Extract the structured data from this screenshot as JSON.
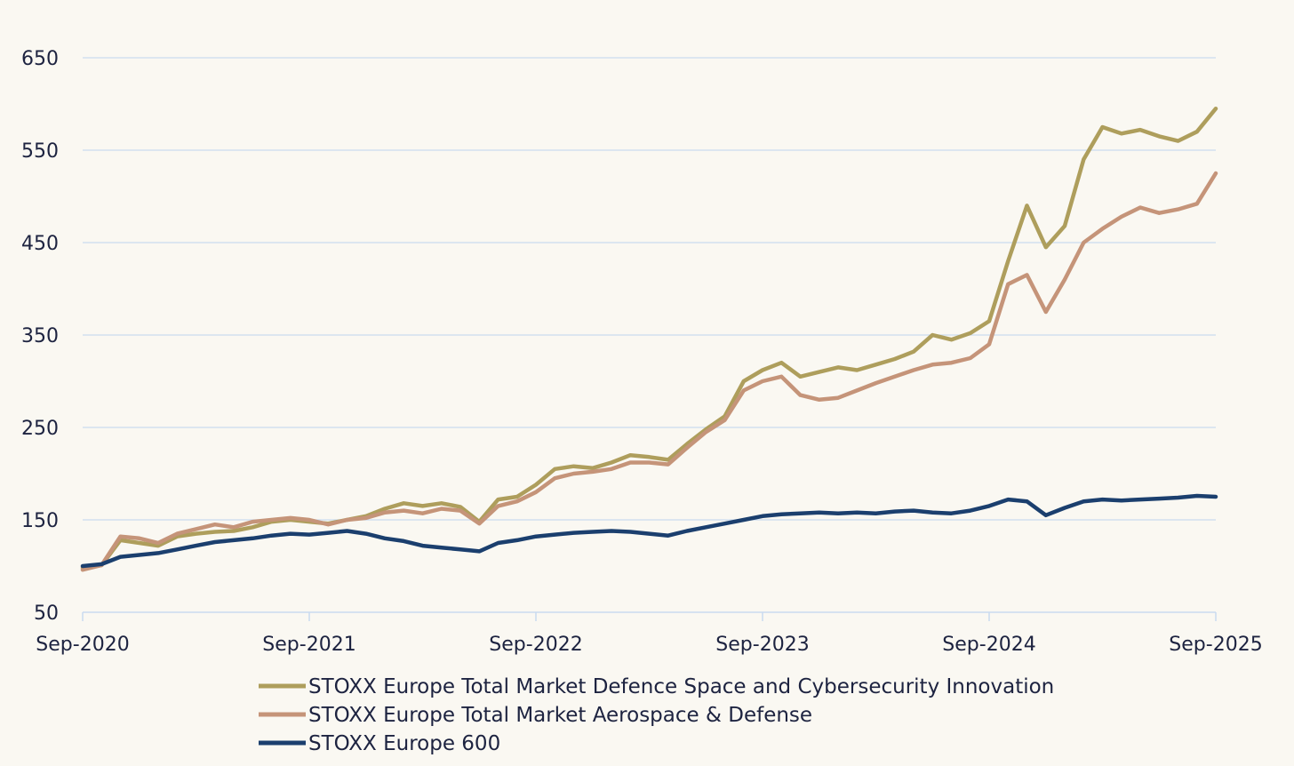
{
  "chart_data": {
    "type": "line",
    "title": "",
    "xlabel": "",
    "ylabel": "",
    "xlim": [
      "Sep-2020",
      "Sep-2025"
    ],
    "ylim": [
      50,
      650
    ],
    "yticks": [
      50,
      150,
      250,
      350,
      450,
      550,
      650
    ],
    "x_tick_labels": [
      "Sep-2020",
      "Sep-2021",
      "Sep-2022",
      "Sep-2023",
      "Sep-2024",
      "Sep-2025"
    ],
    "grid": "horizontal",
    "legend_position": "bottom",
    "x": [
      "Sep-2020",
      "Oct-2020",
      "Nov-2020",
      "Dec-2020",
      "Jan-2021",
      "Feb-2021",
      "Mar-2021",
      "Apr-2021",
      "May-2021",
      "Jun-2021",
      "Jul-2021",
      "Aug-2021",
      "Sep-2021",
      "Oct-2021",
      "Nov-2021",
      "Dec-2021",
      "Jan-2022",
      "Feb-2022",
      "Mar-2022",
      "Apr-2022",
      "May-2022",
      "Jun-2022",
      "Jul-2022",
      "Aug-2022",
      "Sep-2022",
      "Oct-2022",
      "Nov-2022",
      "Dec-2022",
      "Jan-2023",
      "Feb-2023",
      "Mar-2023",
      "Apr-2023",
      "May-2023",
      "Jun-2023",
      "Jul-2023",
      "Aug-2023",
      "Sep-2023",
      "Oct-2023",
      "Nov-2023",
      "Dec-2023",
      "Jan-2024",
      "Feb-2024",
      "Mar-2024",
      "Apr-2024",
      "May-2024",
      "Jun-2024",
      "Jul-2024",
      "Aug-2024",
      "Sep-2024",
      "Oct-2024",
      "Nov-2024",
      "Dec-2024",
      "Jan-2025",
      "Feb-2025",
      "Mar-2025",
      "Apr-2025",
      "May-2025",
      "Jun-2025",
      "Jul-2025",
      "Aug-2025",
      "Sep-2025"
    ],
    "series": [
      {
        "name": "STOXX Europe Total Market Defence Space and Cybersecurity Innovation",
        "color": "#ae9e5c",
        "values": [
          98,
          101,
          128,
          125,
          122,
          132,
          135,
          137,
          138,
          142,
          148,
          150,
          148,
          146,
          150,
          154,
          162,
          168,
          165,
          168,
          164,
          148,
          172,
          175,
          188,
          205,
          208,
          206,
          212,
          220,
          218,
          215,
          232,
          248,
          262,
          300,
          312,
          320,
          305,
          310,
          315,
          312,
          318,
          324,
          332,
          350,
          345,
          352,
          365,
          430,
          490,
          445,
          468,
          540,
          575,
          568,
          572,
          565,
          560,
          570,
          595
        ]
      },
      {
        "name": "STOXX Europe Total Market Aerospace & Defense",
        "color": "#c59479",
        "values": [
          96,
          101,
          132,
          130,
          125,
          135,
          140,
          145,
          142,
          148,
          150,
          152,
          150,
          145,
          150,
          152,
          158,
          160,
          157,
          162,
          160,
          146,
          165,
          170,
          180,
          195,
          200,
          202,
          205,
          212,
          212,
          210,
          228,
          245,
          258,
          290,
          300,
          305,
          285,
          280,
          282,
          290,
          298,
          305,
          312,
          318,
          320,
          325,
          340,
          405,
          415,
          375,
          410,
          450,
          465,
          478,
          488,
          482,
          486,
          492,
          525
        ]
      },
      {
        "name": "STOXX Europe 600",
        "color": "#1b3f6e",
        "values": [
          100,
          102,
          110,
          112,
          114,
          118,
          122,
          126,
          128,
          130,
          133,
          135,
          134,
          136,
          138,
          135,
          130,
          127,
          122,
          120,
          118,
          116,
          125,
          128,
          132,
          134,
          136,
          137,
          138,
          137,
          135,
          133,
          138,
          142,
          146,
          150,
          154,
          156,
          157,
          158,
          157,
          158,
          157,
          159,
          160,
          158,
          157,
          160,
          165,
          172,
          170,
          155,
          163,
          170,
          172,
          171,
          172,
          173,
          174,
          176,
          175
        ]
      }
    ]
  }
}
